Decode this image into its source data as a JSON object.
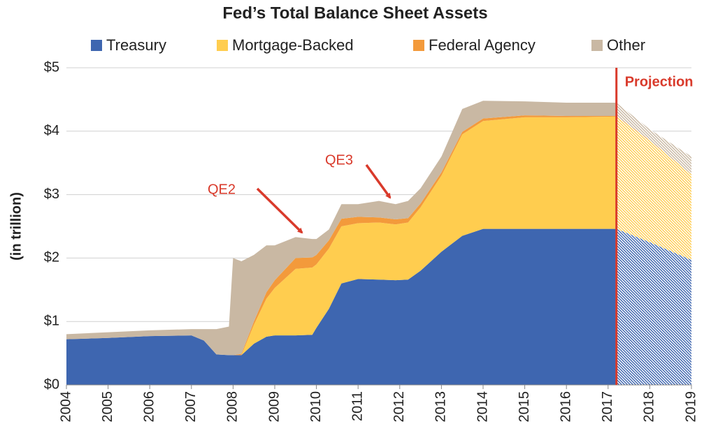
{
  "chart_data": {
    "type": "stacked_area",
    "title": "Fed’s Total Balance Sheet Assets",
    "y_label": "(in trillion)",
    "x": [
      2004,
      2005,
      2006,
      2007,
      2007.3,
      2007.6,
      2007.9,
      2008.0,
      2008.2,
      2008.5,
      2008.8,
      2009,
      2009.5,
      2009.9,
      2010,
      2010.3,
      2010.6,
      2011,
      2011.5,
      2011.9,
      2012.2,
      2012.5,
      2013,
      2013.5,
      2014,
      2015,
      2016,
      2017.2,
      2018,
      2019
    ],
    "series": [
      {
        "name": "Treasury",
        "color": "#3e66b0",
        "values": [
          0.72,
          0.74,
          0.77,
          0.78,
          0.7,
          0.48,
          0.47,
          0.47,
          0.47,
          0.65,
          0.76,
          0.78,
          0.78,
          0.79,
          0.9,
          1.2,
          1.6,
          1.67,
          1.66,
          1.65,
          1.66,
          1.8,
          2.1,
          2.35,
          2.46,
          2.46,
          2.46,
          2.46,
          2.25,
          1.97
        ]
      },
      {
        "name": "Mortgage-Backed",
        "color": "#ffcd4f",
        "values": [
          0,
          0,
          0,
          0,
          0,
          0,
          0,
          0,
          0,
          0.3,
          0.6,
          0.75,
          1.05,
          1.06,
          1.0,
          0.95,
          0.9,
          0.88,
          0.9,
          0.88,
          0.9,
          1.0,
          1.2,
          1.6,
          1.7,
          1.76,
          1.76,
          1.77,
          1.6,
          1.35
        ]
      },
      {
        "name": "Federal Agency",
        "color": "#f39a3b",
        "values": [
          0,
          0,
          0,
          0,
          0,
          0,
          0,
          0,
          0.02,
          0.05,
          0.1,
          0.12,
          0.17,
          0.16,
          0.15,
          0.13,
          0.12,
          0.1,
          0.08,
          0.08,
          0.07,
          0.06,
          0.05,
          0.04,
          0.04,
          0.03,
          0.02,
          0.01,
          0.01,
          0
        ]
      },
      {
        "name": "Other",
        "color": "#c9b8a3",
        "values": [
          0.08,
          0.09,
          0.09,
          0.1,
          0.18,
          0.4,
          0.45,
          1.53,
          1.46,
          1.05,
          0.74,
          0.55,
          0.33,
          0.29,
          0.25,
          0.17,
          0.23,
          0.2,
          0.26,
          0.24,
          0.27,
          0.24,
          0.25,
          0.36,
          0.28,
          0.22,
          0.21,
          0.21,
          0.17,
          0.28
        ]
      }
    ],
    "xlim": [
      2004,
      2019
    ],
    "xticks": [
      2004,
      2005,
      2006,
      2007,
      2008,
      2009,
      2010,
      2011,
      2012,
      2013,
      2014,
      2015,
      2016,
      2017,
      2018,
      2019
    ],
    "ylim": [
      0,
      5
    ],
    "yticks": [
      {
        "value": 0,
        "label": "$0"
      },
      {
        "value": 1,
        "label": "$1"
      },
      {
        "value": 2,
        "label": "$2"
      },
      {
        "value": 3,
        "label": "$3"
      },
      {
        "value": 4,
        "label": "$4"
      },
      {
        "value": 5,
        "label": "$5"
      }
    ],
    "grid": true,
    "legend": "top",
    "projection": {
      "x": 2017.2,
      "label": "Projection",
      "color": "#d93a2b"
    },
    "annotations": [
      {
        "text": "QE2"
      },
      {
        "text": "QE3"
      }
    ]
  }
}
